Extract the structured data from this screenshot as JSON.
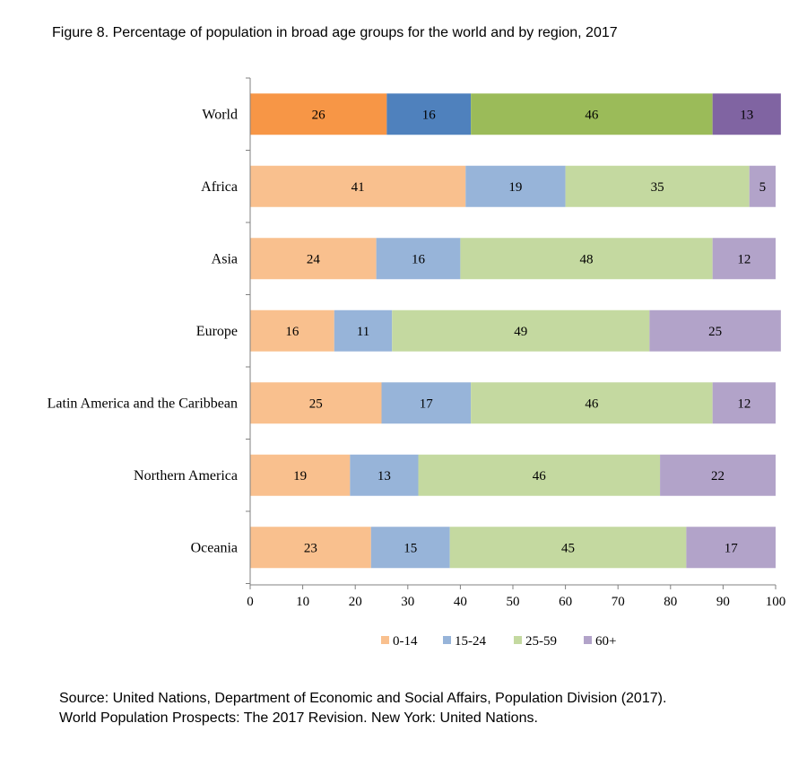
{
  "page": {
    "title": "Figure 8. Percentage of population in broad age groups for the world and by region, 2017",
    "source_lines": [
      "Source: United Nations, Department of Economic and Social Affairs, Population Division (2017).",
      "World Population Prospects: The 2017 Revision. New York: United Nations."
    ]
  },
  "chart_data": {
    "type": "bar",
    "orientation": "horizontal",
    "stacked": true,
    "title": "Figure 8. Percentage of population in broad age groups for the world and by region, 2017",
    "categories": [
      "World",
      "Africa",
      "Asia",
      "Europe",
      "Latin America and the Caribbean",
      "Northern America",
      "Oceania"
    ],
    "series": [
      {
        "name": "0-14",
        "color": "#f9c08e",
        "values": [
          26,
          41,
          24,
          16,
          25,
          19,
          23
        ]
      },
      {
        "name": "15-24",
        "color": "#97b4d9",
        "values": [
          16,
          19,
          16,
          11,
          17,
          13,
          15
        ]
      },
      {
        "name": "25-59",
        "color": "#c4d9a0",
        "values": [
          46,
          35,
          48,
          49,
          46,
          46,
          45
        ]
      },
      {
        "name": "60+",
        "color": "#b2a3c9",
        "values": [
          13,
          5,
          12,
          25,
          12,
          22,
          17
        ]
      }
    ],
    "highlight_colors": {
      "World": [
        "#f79646",
        "#4f81bd",
        "#9bbb59",
        "#8064a2"
      ]
    },
    "xlim": [
      0,
      100
    ],
    "xticks": [
      0,
      10,
      20,
      30,
      40,
      50,
      60,
      70,
      80,
      90,
      100
    ],
    "xlabel": "",
    "ylabel": "",
    "grid": false,
    "legend": "bottom"
  }
}
